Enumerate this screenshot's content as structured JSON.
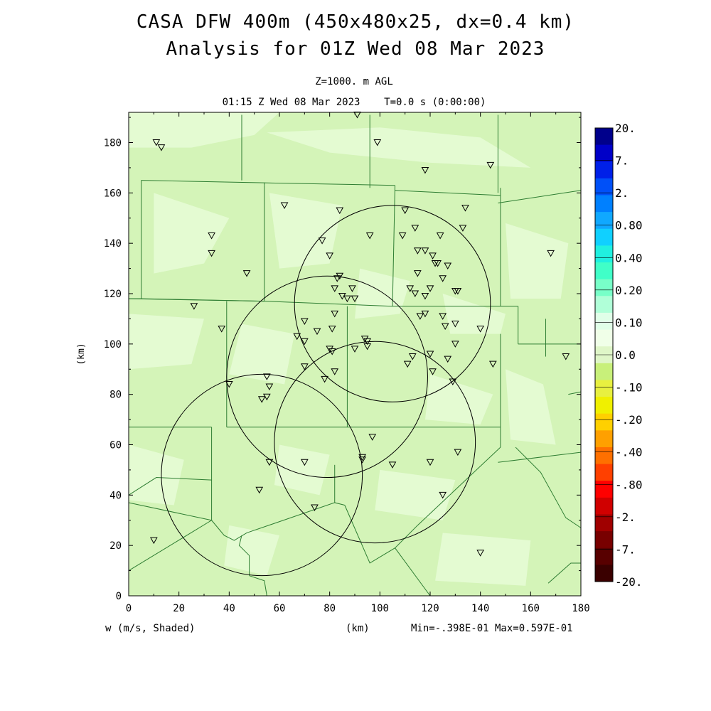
{
  "title": {
    "line1": "CASA DFW 400m (450x480x25, dx=0.4 km)",
    "line2": "Analysis for 01Z Wed 08 Mar 2023"
  },
  "subtitle": {
    "level": "Z=1000. m AGL",
    "time": "01:15 Z Wed 08 Mar 2023    T=0.0 s (0:00:00)"
  },
  "footer": {
    "variable": "w (m/s, Shaded)",
    "xunit": "(km)",
    "stats": "Min=-.398E-01 Max=0.597E-01"
  },
  "colors": {
    "background_field": "#d4f4b8",
    "boundary_line": "#2e7d32"
  },
  "chart_data": {
    "type": "heatmap",
    "variable": "w",
    "units": "m/s",
    "min": -0.0398,
    "max": 0.0597,
    "xlabel": "(km)",
    "ylabel": "(km)",
    "xlim": [
      0,
      180
    ],
    "ylim": [
      0,
      192
    ],
    "xticks": [
      "0",
      "20",
      "40",
      "60",
      "80",
      "100",
      "120",
      "140",
      "160",
      "180"
    ],
    "yticks": [
      "0",
      "20",
      "40",
      "60",
      "80",
      "100",
      "120",
      "140",
      "160",
      "180"
    ],
    "colorbar": {
      "labels": [
        "20.",
        "7.",
        "2.",
        "0.80",
        "0.40",
        "0.20",
        "0.10",
        "0.0",
        "-.10",
        "-.20",
        "-.40",
        "-.80",
        "-2.",
        "-7.",
        "-20."
      ],
      "colors": [
        "#00008b",
        "#0000c8",
        "#0020e8",
        "#0050f8",
        "#0080ff",
        "#10a8ff",
        "#10d0ff",
        "#20f0e0",
        "#40ffc8",
        "#78ffc8",
        "#b0ffd8",
        "#e0ffe8",
        "#f0ffe8",
        "#dff6c8",
        "#c8f07a",
        "#e8f040",
        "#f0f000",
        "#ffd000",
        "#ffa000",
        "#ff7000",
        "#ff4000",
        "#ff0000",
        "#d00000",
        "#a00000",
        "#780000",
        "#580000",
        "#3a0000"
      ]
    },
    "radar_circles": [
      {
        "center": [
          105,
          116
        ],
        "radius": 39
      },
      {
        "center": [
          79,
          87
        ],
        "radius": 40
      },
      {
        "center": [
          98,
          61
        ],
        "radius": 40
      },
      {
        "center": [
          53,
          48
        ],
        "radius": 40
      }
    ],
    "stations": [
      [
        91,
        191
      ],
      [
        11,
        180
      ],
      [
        13,
        178
      ],
      [
        99,
        180
      ],
      [
        118,
        169
      ],
      [
        144,
        171
      ],
      [
        62,
        155
      ],
      [
        84,
        153
      ],
      [
        110,
        153
      ],
      [
        134,
        154
      ],
      [
        114,
        146
      ],
      [
        133,
        146
      ],
      [
        33,
        143
      ],
      [
        77,
        141
      ],
      [
        96,
        143
      ],
      [
        109,
        143
      ],
      [
        124,
        143
      ],
      [
        115,
        137
      ],
      [
        118,
        137
      ],
      [
        121,
        135
      ],
      [
        33,
        136
      ],
      [
        80,
        135
      ],
      [
        122,
        132
      ],
      [
        127,
        131
      ],
      [
        123,
        132
      ],
      [
        168,
        136
      ],
      [
        47,
        128
      ],
      [
        84,
        127
      ],
      [
        83,
        126
      ],
      [
        115,
        128
      ],
      [
        125,
        126
      ],
      [
        82,
        122
      ],
      [
        89,
        122
      ],
      [
        112,
        122
      ],
      [
        114,
        120
      ],
      [
        118,
        119
      ],
      [
        120,
        122
      ],
      [
        130,
        121
      ],
      [
        131,
        121
      ],
      [
        85,
        119
      ],
      [
        87,
        118
      ],
      [
        90,
        118
      ],
      [
        26,
        115
      ],
      [
        82,
        112
      ],
      [
        116,
        111
      ],
      [
        118,
        112
      ],
      [
        125,
        111
      ],
      [
        126,
        107
      ],
      [
        130,
        108
      ],
      [
        37,
        106
      ],
      [
        70,
        109
      ],
      [
        75,
        105
      ],
      [
        81,
        106
      ],
      [
        67,
        103
      ],
      [
        70,
        101
      ],
      [
        94,
        102
      ],
      [
        95,
        101
      ],
      [
        95,
        99
      ],
      [
        80,
        98
      ],
      [
        81,
        97
      ],
      [
        90,
        98
      ],
      [
        113,
        95
      ],
      [
        120,
        96
      ],
      [
        127,
        94
      ],
      [
        130,
        100
      ],
      [
        140,
        106
      ],
      [
        145,
        92
      ],
      [
        174,
        95
      ],
      [
        111,
        92
      ],
      [
        70,
        91
      ],
      [
        82,
        89
      ],
      [
        78,
        86
      ],
      [
        121,
        89
      ],
      [
        129,
        85
      ],
      [
        55,
        87
      ],
      [
        56,
        83
      ],
      [
        40,
        84
      ],
      [
        53,
        78
      ],
      [
        55,
        79
      ],
      [
        97,
        63
      ],
      [
        131,
        57
      ],
      [
        93,
        55
      ],
      [
        93,
        54
      ],
      [
        56,
        53
      ],
      [
        70,
        53
      ],
      [
        105,
        52
      ],
      [
        120,
        53
      ],
      [
        52,
        42
      ],
      [
        125,
        40
      ],
      [
        74,
        35
      ],
      [
        10,
        22
      ],
      [
        140,
        17
      ]
    ],
    "boundaries": [
      [
        [
          5,
          165
        ],
        [
          5,
          118
        ],
        [
          0,
          118
        ]
      ],
      [
        [
          5,
          165
        ],
        [
          54,
          164
        ],
        [
          54,
          163
        ]
      ],
      [
        [
          5,
          118
        ],
        [
          54,
          117
        ]
      ],
      [
        [
          54,
          163
        ],
        [
          54,
          117
        ]
      ],
      [
        [
          54,
          164
        ],
        [
          106,
          163
        ]
      ],
      [
        [
          106,
          163
        ],
        [
          105,
          115
        ]
      ],
      [
        [
          0,
          118
        ],
        [
          54,
          117
        ],
        [
          105,
          115
        ],
        [
          155,
          115
        ]
      ],
      [
        [
          106,
          161
        ],
        [
          148,
          159
        ]
      ],
      [
        [
          148,
          162
        ],
        [
          148,
          115
        ]
      ],
      [
        [
          45,
          191
        ],
        [
          45,
          165
        ]
      ],
      [
        [
          96,
          191
        ],
        [
          96,
          162
        ]
      ],
      [
        [
          147,
          191
        ],
        [
          147,
          160
        ]
      ],
      [
        [
          147,
          156
        ],
        [
          180,
          161
        ]
      ],
      [
        [
          155,
          115
        ],
        [
          155,
          100
        ]
      ],
      [
        [
          155,
          100
        ],
        [
          180,
          100
        ]
      ],
      [
        [
          148,
          104
        ],
        [
          148,
          59
        ]
      ],
      [
        [
          39,
          117
        ],
        [
          39,
          67
        ]
      ],
      [
        [
          87,
          115
        ],
        [
          87,
          67
        ]
      ],
      [
        [
          39,
          67
        ],
        [
          148,
          67
        ]
      ],
      [
        [
          0,
          67
        ],
        [
          33,
          67
        ]
      ],
      [
        [
          33,
          67
        ],
        [
          33,
          30
        ]
      ],
      [
        [
          0,
          37
        ],
        [
          33,
          30
        ]
      ],
      [
        [
          0,
          10
        ],
        [
          33,
          30
        ]
      ],
      [
        [
          33,
          30
        ],
        [
          38,
          24
        ],
        [
          42,
          22
        ],
        [
          47,
          25
        ],
        [
          82,
          37
        ],
        [
          86,
          36
        ]
      ],
      [
        [
          82,
          37
        ],
        [
          82,
          52
        ]
      ],
      [
        [
          86,
          36
        ],
        [
          96,
          13
        ],
        [
          106,
          19
        ],
        [
          115,
          28
        ],
        [
          148,
          59
        ]
      ],
      [
        [
          106,
          19
        ],
        [
          120,
          0
        ]
      ],
      [
        [
          147,
          53
        ],
        [
          180,
          57
        ]
      ],
      [
        [
          154,
          59
        ],
        [
          164,
          49
        ],
        [
          174,
          31
        ],
        [
          180,
          27
        ]
      ],
      [
        [
          0,
          40
        ],
        [
          11,
          47
        ],
        [
          33,
          46
        ]
      ],
      [
        [
          45,
          24
        ],
        [
          44,
          20
        ],
        [
          48,
          16
        ],
        [
          48,
          8
        ]
      ],
      [
        [
          48,
          8
        ],
        [
          54,
          6
        ],
        [
          55,
          0
        ]
      ],
      [
        [
          167,
          5
        ],
        [
          176,
          13
        ],
        [
          180,
          13
        ]
      ],
      [
        [
          166,
          95
        ],
        [
          166,
          110
        ]
      ],
      [
        [
          175,
          80
        ],
        [
          180,
          81
        ]
      ]
    ]
  }
}
